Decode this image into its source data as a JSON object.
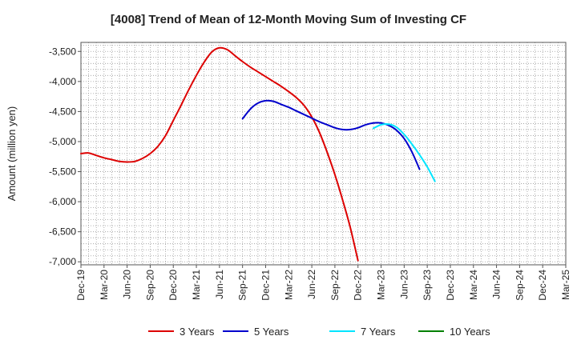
{
  "chart_data": {
    "type": "line",
    "title": "[4008]  Trend of Mean of 12-Month Moving Sum of Investing CF",
    "ylabel": "Amount (million yen)",
    "xlabel": "",
    "ylim": [
      -7050,
      -3350
    ],
    "yticks": [
      -3500,
      -4000,
      -4500,
      -5000,
      -5500,
      -6000,
      -6500,
      -7000
    ],
    "ytick_labels": [
      "-3,500",
      "-4,000",
      "-4,500",
      "-5,000",
      "-5,500",
      "-6,000",
      "-6,500",
      "-7,000"
    ],
    "xticks": [
      "Dec-19",
      "Mar-20",
      "Jun-20",
      "Sep-20",
      "Dec-20",
      "Mar-21",
      "Jun-21",
      "Sep-21",
      "Dec-21",
      "Mar-22",
      "Jun-22",
      "Sep-22",
      "Dec-22",
      "Mar-23",
      "Jun-23",
      "Sep-23",
      "Dec-23",
      "Mar-24",
      "Jun-24",
      "Sep-24",
      "Dec-24",
      "Mar-25"
    ],
    "grid": true,
    "legend_position": "bottom",
    "series": [
      {
        "name": "3 Years",
        "color": "#dd0000",
        "start_index": 0,
        "values": [
          -5200,
          -5190,
          -5230,
          -5270,
          -5300,
          -5330,
          -5340,
          -5330,
          -5280,
          -5200,
          -5080,
          -4900,
          -4650,
          -4400,
          -4140,
          -3900,
          -3680,
          -3510,
          -3440,
          -3470,
          -3570,
          -3670,
          -3760,
          -3840,
          -3920,
          -4000,
          -4080,
          -4170,
          -4270,
          -4400,
          -4590,
          -4850,
          -5180,
          -5550,
          -5970,
          -6430,
          -6980
        ]
      },
      {
        "name": "5 Years",
        "color": "#0000cc",
        "start_index": 21,
        "values": [
          -4620,
          -4460,
          -4360,
          -4320,
          -4330,
          -4380,
          -4430,
          -4490,
          -4550,
          -4610,
          -4670,
          -4720,
          -4770,
          -4800,
          -4800,
          -4770,
          -4720,
          -4690,
          -4690,
          -4730,
          -4810,
          -4950,
          -5170,
          -5460
        ]
      },
      {
        "name": "7 Years",
        "color": "#00e5ff",
        "start_index": 38,
        "values": [
          -4780,
          -4720,
          -4710,
          -4760,
          -4880,
          -5040,
          -5220,
          -5420,
          -5660
        ]
      },
      {
        "name": "10 Years",
        "color": "#008000",
        "start_index": 0,
        "values": []
      }
    ]
  }
}
